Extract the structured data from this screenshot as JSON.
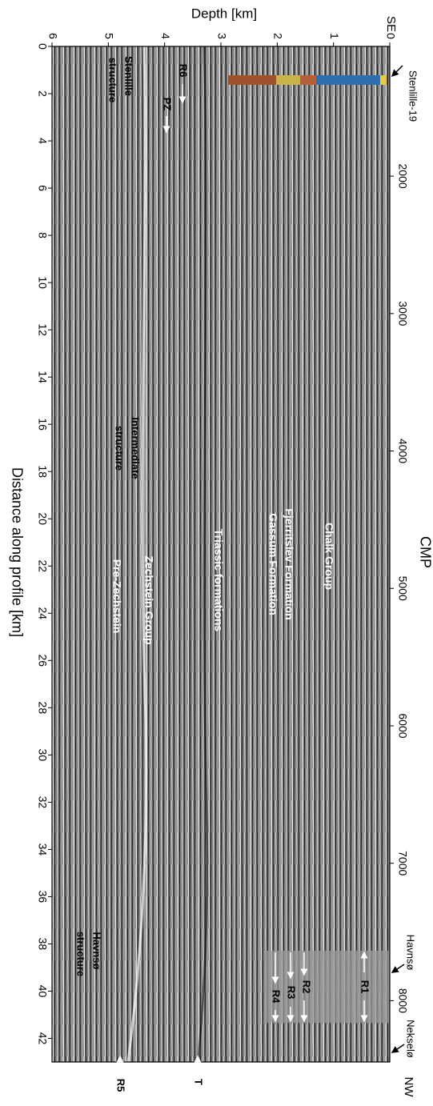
{
  "chart_data": {
    "type": "seismic-section",
    "x_label": "Depth [km]",
    "y_label": "Distance along profile [km]",
    "y2_label": "CMP",
    "xlim": [
      0,
      6
    ],
    "xticks": [
      0,
      1,
      2,
      3,
      4,
      5,
      6
    ],
    "ylim": [
      0,
      43
    ],
    "yticks": [
      0,
      2,
      4,
      6,
      8,
      10,
      12,
      14,
      16,
      18,
      20,
      22,
      24,
      26,
      28,
      30,
      32,
      34,
      36,
      38,
      40,
      42
    ],
    "y2lim": [
      1056,
      8446
    ],
    "y2ticks": [
      2000,
      3000,
      4000,
      5000,
      6000,
      7000,
      8000
    ],
    "annotations": [
      "SE",
      "NW",
      "Stenlille-19",
      "Havnsø",
      "Nekselø",
      "Stenlille",
      "structure",
      "Intermediate",
      "structure",
      "Havnsø",
      "structure",
      "Chalk Group",
      "Fjerritslev Formation",
      "Gassum Formation",
      "Triassic formations",
      "Zechstein Group",
      "Pre-Zechstein",
      "R1",
      "R2",
      "R3",
      "R4",
      "R5",
      "R6",
      "PZ",
      "T"
    ]
  }
}
